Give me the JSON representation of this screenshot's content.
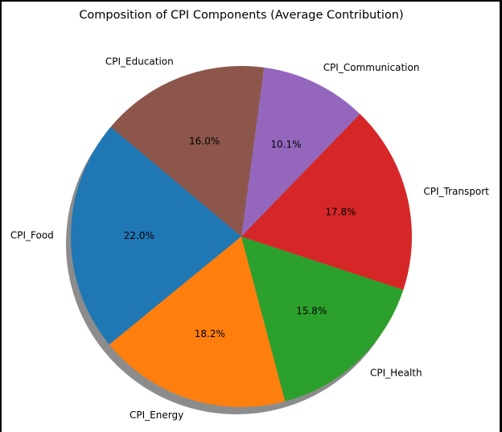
{
  "chart_data": {
    "type": "pie",
    "title": "Composition of CPI Components (Average Contribution)",
    "start_angle_deg": 140,
    "direction": "counterclockwise",
    "shadow": true,
    "slices": [
      {
        "label": "CPI_Food",
        "value": 22.0,
        "pct_label": "22.0%",
        "color": "#1f77b4"
      },
      {
        "label": "CPI_Energy",
        "value": 18.2,
        "pct_label": "18.2%",
        "color": "#ff7f0e"
      },
      {
        "label": "CPI_Health",
        "value": 15.8,
        "pct_label": "15.8%",
        "color": "#2ca02c"
      },
      {
        "label": "CPI_Transport",
        "value": 17.8,
        "pct_label": "17.8%",
        "color": "#d62728"
      },
      {
        "label": "CPI_Communication",
        "value": 10.1,
        "pct_label": "10.1%",
        "color": "#9467bd"
      },
      {
        "label": "CPI_Education",
        "value": 16.0,
        "pct_label": "16.0%",
        "color": "#8c564b"
      }
    ]
  }
}
